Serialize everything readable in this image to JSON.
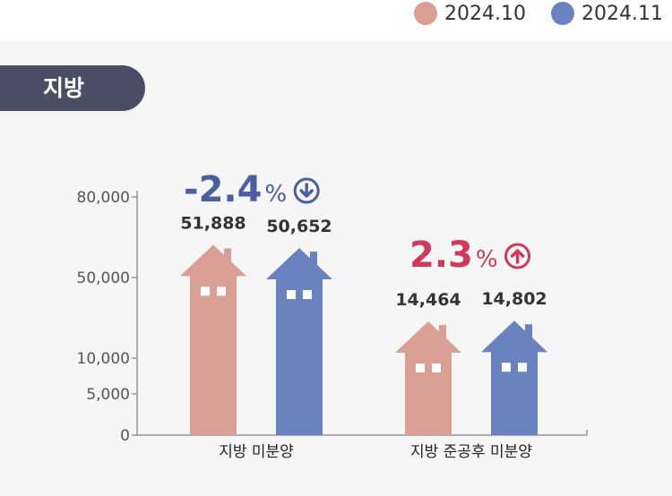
{
  "region": "지방",
  "legend": [
    {
      "label": "2024.10",
      "color": "#d99f94"
    },
    {
      "label": "2024.11",
      "color": "#6a82c0"
    }
  ],
  "chart_data": {
    "type": "bar",
    "categories": [
      "지방 미분양",
      "지방 준공후 미분양"
    ],
    "series": [
      {
        "name": "2024.10",
        "values": [
          51888,
          14464
        ],
        "labels": [
          "51,888",
          "14,464"
        ],
        "color": "#d99f94"
      },
      {
        "name": "2024.11",
        "values": [
          50652,
          14802
        ],
        "labels": [
          "50,652",
          "14,802"
        ],
        "color": "#6a82c0"
      }
    ],
    "y_ticks": [
      0,
      5000,
      10000,
      50000,
      80000
    ],
    "y_tick_labels": [
      "0",
      "5,000",
      "10,000",
      "50,000",
      "80,000"
    ],
    "axis_break": true,
    "changes": [
      {
        "category": "지방 미분양",
        "value": "-2.4",
        "unit": "%",
        "direction": "down",
        "color": "#4a5fa0"
      },
      {
        "category": "지방 준공후 미분양",
        "value": "2.3",
        "unit": "%",
        "direction": "up",
        "color": "#d0395a"
      }
    ]
  }
}
